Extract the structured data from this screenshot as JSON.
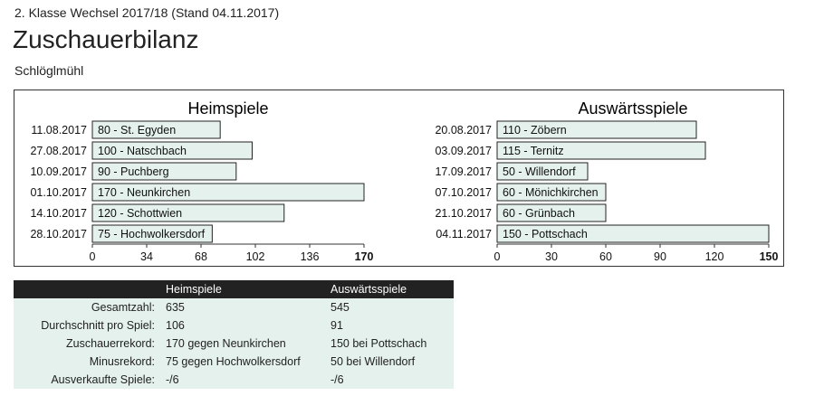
{
  "header": {
    "league": "2. Klasse Wechsel 2017/18 (Stand 04.11.2017)",
    "title": "Zuschauerbilanz",
    "team": "Schlöglmühl"
  },
  "colors": {
    "bar_fill": "#e4f1ec",
    "bar_stroke": "#222222",
    "header_bg": "#222222",
    "row_bg": "#e4f1ec"
  },
  "chart_data": [
    {
      "type": "bar",
      "orientation": "horizontal",
      "title": "Heimspiele",
      "categories": [
        "11.08.2017",
        "27.08.2017",
        "10.09.2017",
        "01.10.2017",
        "14.10.2017",
        "28.10.2017"
      ],
      "bar_labels": [
        "80 - St. Egyden",
        "100 - Natschbach",
        "90 - Puchberg",
        "170 - Neunkirchen",
        "120 - Schottwien",
        "75 - Hochwolkersdorf"
      ],
      "values": [
        80,
        100,
        90,
        170,
        120,
        75
      ],
      "xlim": [
        0,
        170
      ],
      "xticks": [
        "0",
        "34",
        "68",
        "102",
        "136",
        "170"
      ],
      "grid": false
    },
    {
      "type": "bar",
      "orientation": "horizontal",
      "title": "Auswärtsspiele",
      "categories": [
        "20.08.2017",
        "03.09.2017",
        "17.09.2017",
        "07.10.2017",
        "21.10.2017",
        "04.11.2017"
      ],
      "bar_labels": [
        "110 - Zöbern",
        "115 - Ternitz",
        "50 - Willendorf",
        "60 - Mönichkirchen",
        "60 - Grünbach",
        "150 - Pottschach"
      ],
      "values": [
        110,
        115,
        50,
        60,
        60,
        150
      ],
      "xlim": [
        0,
        150
      ],
      "xticks": [
        "0",
        "30",
        "60",
        "90",
        "120",
        "150"
      ],
      "grid": false
    }
  ],
  "stats": {
    "headers": [
      "",
      "Heimspiele",
      "Auswärtsspiele"
    ],
    "rows": [
      [
        "Gesamtzahl:",
        "635",
        "545"
      ],
      [
        "Durchschnitt pro Spiel:",
        "106",
        "91"
      ],
      [
        "Zuschauerrekord:",
        "170 gegen Neunkirchen",
        "150 bei Pottschach"
      ],
      [
        "Minusrekord:",
        "75 gegen Hochwolkersdorf",
        "50 bei Willendorf"
      ],
      [
        "Ausverkaufte Spiele:",
        "-/6",
        "-/6"
      ]
    ]
  }
}
